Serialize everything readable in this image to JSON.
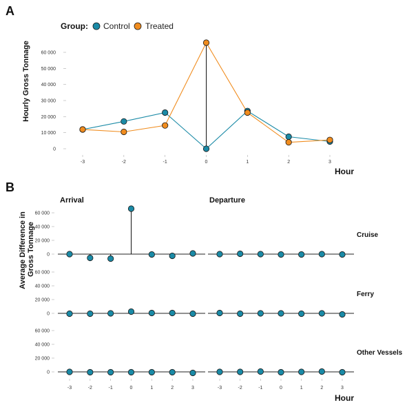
{
  "chart_data": [
    {
      "panel_label": "A",
      "type": "line",
      "legend_title": "Group:",
      "legend_position": "top-left",
      "xlabel": "Hour",
      "ylabel": "Hourly Gross Tonnage",
      "x": [
        -3,
        -2,
        -1,
        0,
        1,
        2,
        3
      ],
      "x_tick_labels": [
        "-3",
        "-2",
        "-1",
        "0",
        "1",
        "2",
        "3"
      ],
      "y_ticks": [
        0,
        10000,
        20000,
        30000,
        40000,
        50000,
        60000
      ],
      "y_tick_labels": [
        "0",
        "10 000",
        "20 000",
        "30 000",
        "40 000",
        "50 000",
        "60 000"
      ],
      "ylim": [
        -2000,
        68000
      ],
      "grid": false,
      "series": [
        {
          "name": "Control",
          "color": "#1a8aa6",
          "values": [
            12000,
            17000,
            22500,
            0,
            23500,
            7500,
            4500
          ]
        },
        {
          "name": "Treated",
          "color": "#f08c1e",
          "values": [
            12000,
            10500,
            14500,
            66000,
            22500,
            4000,
            5500
          ]
        }
      ],
      "annotations": [
        {
          "type": "vertical-segment",
          "x": 0,
          "from_series": "Control",
          "to_series": "Treated"
        }
      ]
    },
    {
      "panel_label": "B",
      "type": "scatter",
      "style": "lollipop",
      "xlabel": "Hour",
      "ylabel": "Average Difference in Gross Tonnage",
      "x": [
        -3,
        -2,
        -1,
        0,
        1,
        2,
        3
      ],
      "x_tick_labels": [
        "-3",
        "-2",
        "-1",
        "0",
        "1",
        "2",
        "3"
      ],
      "y_ticks": [
        0,
        20000,
        40000,
        60000
      ],
      "y_tick_labels": [
        "0",
        "20 000",
        "40 000",
        "60 000"
      ],
      "ylim": [
        -8000,
        66000
      ],
      "grid": false,
      "point_color": "#1a8aa6",
      "columns": [
        "Arrival",
        "Departure"
      ],
      "rows": [
        "Cruise",
        "Ferry",
        "Other Vessels"
      ],
      "facets": [
        {
          "row": "Cruise",
          "column": "Arrival",
          "values": [
            0,
            -5500,
            -6500,
            66000,
            -500,
            -2500,
            1000
          ]
        },
        {
          "row": "Cruise",
          "column": "Departure",
          "values": [
            0,
            500,
            0,
            -500,
            -500,
            0,
            -500
          ]
        },
        {
          "row": "Ferry",
          "column": "Arrival",
          "values": [
            -500,
            -500,
            0,
            2500,
            500,
            500,
            -500
          ]
        },
        {
          "row": "Ferry",
          "column": "Departure",
          "values": [
            500,
            -500,
            0,
            0,
            -500,
            0,
            -1500
          ]
        },
        {
          "row": "Other Vessels",
          "column": "Arrival",
          "values": [
            0,
            -500,
            -500,
            -500,
            -500,
            -500,
            -1500
          ]
        },
        {
          "row": "Other Vessels",
          "column": "Departure",
          "values": [
            0,
            0,
            500,
            -500,
            0,
            500,
            -500
          ]
        }
      ]
    }
  ]
}
